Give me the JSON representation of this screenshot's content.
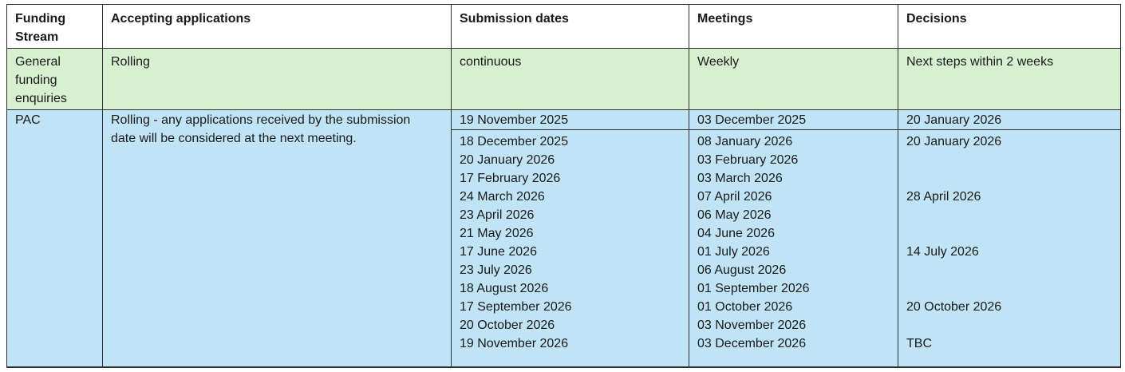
{
  "table": {
    "headers": [
      "Funding Stream",
      "Accepting applications",
      "Submission dates",
      "Meetings",
      "Decisions"
    ],
    "general": {
      "stream": "General funding enquiries",
      "accepting": "Rolling",
      "submission": "continuous",
      "meetings": "Weekly",
      "decisions": "Next steps within 2 weeks"
    },
    "pac": {
      "stream": "PAC",
      "accepting": "Rolling - any applications received by the submission date will be considered at the next meeting.",
      "first_cycle": {
        "submission": "19 November 2025",
        "meeting": "03 December 2025",
        "decision": "20 January 2026"
      },
      "submission_dates": [
        "18 December 2025",
        "20 January 2026",
        "17 February 2026",
        "24 March 2026",
        "23 April 2026",
        "21 May 2026",
        "17 June 2026",
        "23 July 2026",
        "18 August 2026",
        "17 September 2026",
        "20 October 2026",
        "19 November 2026"
      ],
      "meetings": [
        "08 January 2026",
        "03 February 2026",
        "03 March 2026",
        "07 April 2026",
        "06 May 2026",
        "04 June 2026",
        "01 July 2026",
        "06 August 2026",
        "01 September 2026",
        "01 October 2026",
        "03 November 2026",
        "03 December 2026"
      ],
      "decisions": [
        "20 January 2026",
        "",
        "",
        "28 April 2026",
        "",
        "",
        "14 July 2026",
        "",
        "",
        "20 October 2026",
        "",
        "TBC"
      ]
    }
  },
  "colors": {
    "green_row_bg": "#d7f0d0",
    "blue_row_bg": "#c0e4f5",
    "border": "#2f2f2f",
    "text": "#1a1a1a"
  }
}
